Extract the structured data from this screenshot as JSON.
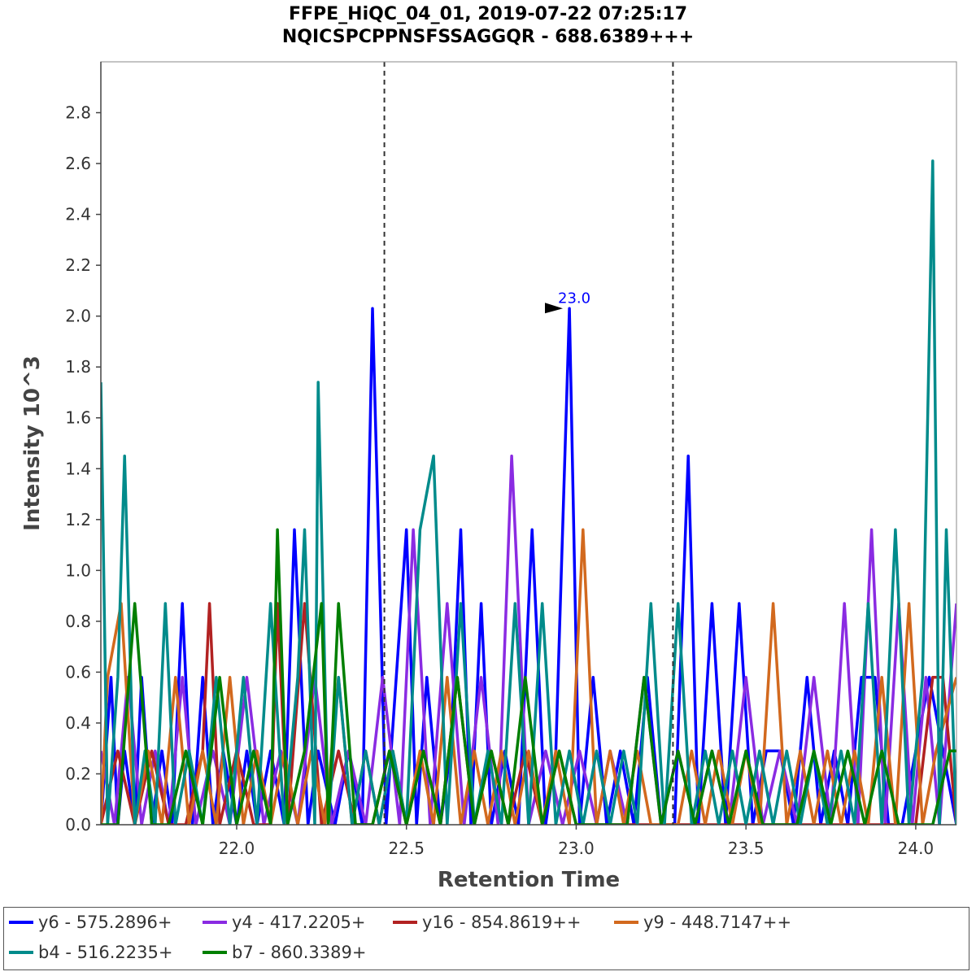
{
  "chart_data": {
    "type": "line",
    "title": "FFPE_HiQC_04_01, 2019-07-22 07:25:17",
    "subtitle": "NQICSPCPPNSFSSAGGQR - 688.6389+++",
    "xlabel": "Retention Time",
    "ylabel": "Intensity 10^3",
    "xlim": [
      21.6,
      24.12
    ],
    "ylim": [
      0,
      3.0
    ],
    "xticks": [
      22.0,
      22.5,
      23.0,
      23.5,
      24.0
    ],
    "xtick_labels": [
      "22.0",
      "22.5",
      "23.0",
      "23.5",
      "24.0"
    ],
    "yticks": [
      0,
      0.2,
      0.4,
      0.6,
      0.8,
      1.0,
      1.2,
      1.4,
      1.6,
      1.8,
      2.0,
      2.2,
      2.4,
      2.6,
      2.8
    ],
    "ytick_labels": [
      "0.0",
      "0.2",
      "0.4",
      "0.6",
      "0.8",
      "1.0",
      "1.2",
      "1.4",
      "1.6",
      "1.8",
      "2.0",
      "2.2",
      "2.4",
      "2.6",
      "2.8"
    ],
    "boundaries": [
      22.435,
      23.285
    ],
    "annotation": {
      "x": 22.975,
      "y": 2.03,
      "label": "23.0",
      "color": "#0000ff"
    },
    "series": [
      {
        "name": "y6 - 575.2896+",
        "color": "#0000ff",
        "x": [
          21.6,
          21.63,
          21.65,
          21.67,
          21.7,
          21.72,
          21.75,
          21.78,
          21.81,
          21.84,
          21.87,
          21.9,
          21.93,
          21.96,
          22.0,
          22.03,
          22.06,
          22.1,
          22.14,
          22.17,
          22.21,
          22.24,
          22.29,
          22.33,
          22.37,
          22.4,
          22.44,
          22.47,
          22.5,
          22.53,
          22.56,
          22.6,
          22.63,
          22.66,
          22.69,
          22.72,
          22.75,
          22.79,
          22.83,
          22.87,
          22.91,
          22.94,
          22.98,
          23.01,
          23.05,
          23.09,
          23.13,
          23.17,
          23.21,
          23.25,
          23.29,
          23.33,
          23.36,
          23.4,
          23.44,
          23.48,
          23.52,
          23.56,
          23.6,
          23.64,
          23.68,
          23.72,
          23.76,
          23.8,
          23.84,
          23.88,
          23.92,
          23.96,
          24.0,
          24.04,
          24.08,
          24.12
        ],
        "y": [
          0,
          0.58,
          0,
          0.29,
          0,
          0.58,
          0,
          0.29,
          0,
          0.87,
          0,
          0.58,
          0,
          0.29,
          0,
          0.29,
          0,
          0.29,
          0,
          1.16,
          0,
          0.29,
          0,
          0.29,
          0,
          2.03,
          0,
          0.58,
          1.16,
          0,
          0.58,
          0,
          0.29,
          1.16,
          0,
          0.87,
          0,
          0.29,
          0,
          1.16,
          0,
          0.29,
          2.03,
          0,
          0.58,
          0,
          0.29,
          0,
          0.58,
          0,
          0,
          1.45,
          0,
          0.87,
          0,
          0.87,
          0,
          0.29,
          0.29,
          0,
          0.58,
          0,
          0.29,
          0,
          0.58,
          0.58,
          0,
          0,
          0.29,
          0.58,
          0.29,
          0
        ]
      },
      {
        "name": "y4 - 417.2205+",
        "color": "#8a2be2",
        "x": [
          21.6,
          21.64,
          21.68,
          21.72,
          21.76,
          21.8,
          21.84,
          21.88,
          21.93,
          21.98,
          22.03,
          22.08,
          22.13,
          22.18,
          22.23,
          22.28,
          22.33,
          22.38,
          22.43,
          22.48,
          22.52,
          22.57,
          22.62,
          22.67,
          22.72,
          22.77,
          22.81,
          22.86,
          22.91,
          22.96,
          23.01,
          23.06,
          23.1,
          23.15,
          23.2,
          23.25,
          23.3,
          23.35,
          23.4,
          23.45,
          23.5,
          23.55,
          23.6,
          23.65,
          23.7,
          23.75,
          23.79,
          23.83,
          23.87,
          23.91,
          23.95,
          23.99,
          24.03,
          24.07,
          24.12
        ],
        "y": [
          0.29,
          0,
          0.58,
          0,
          0.29,
          0,
          0.58,
          0,
          0.29,
          0,
          0.58,
          0,
          0.29,
          0,
          0.58,
          0,
          0.29,
          0,
          0.58,
          0,
          1.16,
          0,
          0.87,
          0,
          0.58,
          0,
          1.45,
          0,
          0.29,
          0,
          0.29,
          0,
          0.29,
          0,
          0.58,
          0,
          0.29,
          0,
          0.29,
          0,
          0.58,
          0,
          0.29,
          0,
          0.58,
          0,
          0.87,
          0,
          1.16,
          0,
          0.87,
          0,
          0.58,
          0,
          0.87
        ]
      },
      {
        "name": "y16 - 854.8619++",
        "color": "#b22222",
        "x": [
          21.6,
          21.65,
          21.7,
          21.75,
          21.8,
          21.85,
          21.9,
          21.92,
          21.95,
          22.0,
          22.05,
          22.1,
          22.12,
          22.15,
          22.2,
          22.25,
          22.3,
          22.35,
          22.4,
          22.45,
          22.5,
          22.55,
          22.6,
          22.65,
          22.7,
          22.75,
          22.8,
          22.85,
          22.9,
          22.95,
          23.0,
          23.05,
          23.1,
          23.2,
          23.3,
          23.4,
          23.5,
          23.6,
          23.7,
          23.8,
          23.9,
          24.0,
          24.05,
          24.08,
          24.12
        ],
        "y": [
          0,
          0.29,
          0,
          0.29,
          0,
          0,
          0.29,
          0.87,
          0,
          0.29,
          0,
          0,
          0.87,
          0,
          0.87,
          0,
          0.29,
          0,
          0,
          0.29,
          0,
          0.29,
          0,
          0.58,
          0,
          0.29,
          0,
          0.29,
          0,
          0.29,
          0,
          0,
          0,
          0,
          0,
          0,
          0,
          0,
          0,
          0,
          0,
          0,
          0.58,
          0.58,
          0
        ]
      },
      {
        "name": "y9 - 448.7147++",
        "color": "#d2691e",
        "x": [
          21.6,
          21.62,
          21.66,
          21.7,
          21.74,
          21.78,
          21.82,
          21.86,
          21.9,
          21.94,
          21.98,
          22.02,
          22.06,
          22.1,
          22.14,
          22.18,
          22.22,
          22.26,
          22.3,
          22.34,
          22.38,
          22.42,
          22.46,
          22.5,
          22.54,
          22.58,
          22.62,
          22.66,
          22.7,
          22.74,
          22.78,
          22.82,
          22.86,
          22.9,
          22.94,
          22.98,
          23.02,
          23.06,
          23.1,
          23.14,
          23.18,
          23.22,
          23.26,
          23.3,
          23.34,
          23.38,
          23.42,
          23.46,
          23.5,
          23.54,
          23.58,
          23.62,
          23.66,
          23.7,
          23.74,
          23.78,
          23.82,
          23.86,
          23.9,
          23.94,
          23.98,
          24.02,
          24.06,
          24.12
        ],
        "y": [
          0,
          0.58,
          0.87,
          0,
          0.29,
          0,
          0.58,
          0,
          0.29,
          0,
          0.58,
          0,
          0.29,
          0,
          0.29,
          0,
          0.29,
          0,
          0.58,
          0,
          0.29,
          0,
          0.29,
          0,
          0.29,
          0,
          0.58,
          0,
          0.29,
          0,
          0.29,
          0,
          0.29,
          0,
          0.29,
          0,
          1.16,
          0,
          0.29,
          0,
          0.29,
          0,
          0,
          0,
          0.29,
          0,
          0.29,
          0,
          0.29,
          0,
          0.87,
          0,
          0.29,
          0,
          0.29,
          0,
          0.29,
          0,
          0.58,
          0,
          0.87,
          0,
          0.29,
          0.58
        ]
      },
      {
        "name": "b4 - 516.2235+",
        "color": "#008b8b",
        "x": [
          21.6,
          21.62,
          21.65,
          21.67,
          21.7,
          21.73,
          21.76,
          21.79,
          21.82,
          21.86,
          21.9,
          21.94,
          21.98,
          22.02,
          22.06,
          22.1,
          22.14,
          22.18,
          22.2,
          22.23,
          22.24,
          22.27,
          22.3,
          22.34,
          22.38,
          22.42,
          22.46,
          22.5,
          22.54,
          22.58,
          22.62,
          22.66,
          22.7,
          22.74,
          22.78,
          22.82,
          22.86,
          22.9,
          22.94,
          22.98,
          23.02,
          23.06,
          23.1,
          23.14,
          23.18,
          23.22,
          23.26,
          23.3,
          23.34,
          23.38,
          23.42,
          23.46,
          23.5,
          23.54,
          23.58,
          23.62,
          23.66,
          23.7,
          23.74,
          23.78,
          23.82,
          23.86,
          23.9,
          23.94,
          23.98,
          24.02,
          24.05,
          24.07,
          24.09,
          24.12
        ],
        "y": [
          1.74,
          0,
          0.58,
          1.45,
          0,
          0.29,
          0,
          0.87,
          0,
          0.29,
          0,
          0.58,
          0,
          0.58,
          0,
          0.87,
          0,
          0.58,
          1.16,
          0,
          1.74,
          0,
          0.58,
          0,
          0.29,
          0,
          0.29,
          0,
          1.16,
          1.45,
          0,
          0.87,
          0,
          0.29,
          0,
          0.87,
          0,
          0.87,
          0,
          0.29,
          0,
          0.29,
          0,
          0.29,
          0,
          0.87,
          0,
          0.87,
          0,
          0.29,
          0,
          0.29,
          0,
          0.29,
          0,
          0.29,
          0,
          0.29,
          0,
          0.29,
          0,
          0.87,
          0,
          1.16,
          0,
          0.58,
          2.61,
          0,
          1.16,
          0
        ]
      },
      {
        "name": "b7 - 860.3389+",
        "color": "#007f00",
        "x": [
          21.6,
          21.65,
          21.7,
          21.75,
          21.8,
          21.85,
          21.9,
          21.95,
          22.0,
          22.05,
          22.1,
          22.12,
          22.15,
          22.2,
          22.25,
          22.27,
          22.3,
          22.35,
          22.4,
          22.45,
          22.5,
          22.55,
          22.6,
          22.65,
          22.7,
          22.75,
          22.8,
          22.85,
          22.9,
          22.95,
          23.0,
          23.05,
          23.1,
          23.15,
          23.2,
          23.25,
          23.3,
          23.35,
          23.4,
          23.45,
          23.5,
          23.55,
          23.6,
          23.65,
          23.7,
          23.75,
          23.8,
          23.85,
          23.9,
          23.95,
          24.0,
          24.05,
          24.1,
          24.12
        ],
        "y": [
          0,
          0,
          0.87,
          0,
          0,
          0.29,
          0,
          0.58,
          0,
          0.29,
          0,
          1.16,
          0,
          0.29,
          0.87,
          0,
          0.87,
          0,
          0,
          0.29,
          0,
          0.29,
          0,
          0.58,
          0,
          0.29,
          0,
          0.58,
          0,
          0.29,
          0,
          0,
          0,
          0,
          0.58,
          0,
          0.29,
          0,
          0.29,
          0,
          0.29,
          0,
          0,
          0,
          0.29,
          0,
          0.29,
          0,
          0.29,
          0,
          0,
          0,
          0.29,
          0.29
        ]
      }
    ]
  }
}
